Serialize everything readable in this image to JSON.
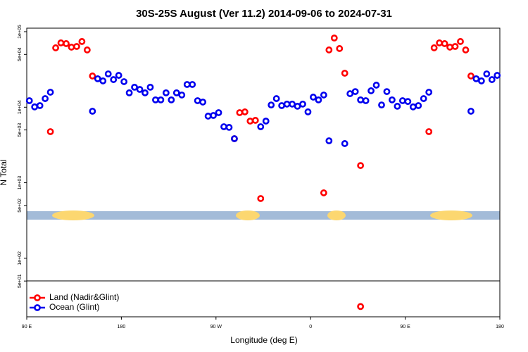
{
  "chart_data": {
    "type": "scatter",
    "title": "30S-25S August (Ver 11.2)   2014-09-06 to 2024-07-31",
    "xlabel": "Longitude (deg E)",
    "ylabel": "N Total",
    "xlim": [
      90,
      540
    ],
    "xticks": [
      {
        "value": 90,
        "label": "90 E"
      },
      {
        "value": 180,
        "label": "180"
      },
      {
        "value": 270,
        "label": "90 W"
      },
      {
        "value": 360,
        "label": "0"
      },
      {
        "value": 450,
        "label": "90 E"
      },
      {
        "value": 540,
        "label": "180"
      }
    ],
    "ylim": [
      16.8,
      111300
    ],
    "log_y": true,
    "yticks": [
      {
        "value": 100000,
        "label": "1e+05"
      },
      {
        "value": 50000,
        "label": "5e+04"
      },
      {
        "value": 10000,
        "label": "1e+04"
      },
      {
        "value": 5000,
        "label": "5e+03"
      },
      {
        "value": 1000,
        "label": "1e+03"
      },
      {
        "value": 500,
        "label": "5e+02"
      },
      {
        "value": 100,
        "label": "1e+02"
      },
      {
        "value": 50,
        "label": "5e+01"
      }
    ],
    "legend": "lower left",
    "series": [
      {
        "name": "Land (Nadir&Glint)",
        "color": "#ff0000",
        "x": [
          112.5,
          117.5,
          122.5,
          127.5,
          132.5,
          137.5,
          142.5,
          147.5,
          152.5,
          287.5,
          292.5,
          297.5,
          302.5,
          307.5,
          312.5,
          372.5,
          377.5,
          382.5,
          387.5,
          392.5,
          407.5,
          407.5,
          472.5,
          477.5,
          482.5,
          487.5,
          492.5,
          497.5,
          502.5,
          507.5,
          512.5
        ],
        "values": [
          4750,
          61100,
          71000,
          69500,
          62400,
          63700,
          74100,
          57300,
          25900,
          3830,
          8470,
          8670,
          6550,
          6700,
          618,
          735,
          57300,
          82400,
          59800,
          28200,
          1690,
          23,
          4750,
          61100,
          71000,
          69500,
          62400,
          63700,
          74100,
          57300,
          25900
        ]
      },
      {
        "name": "Ocean (Glint)",
        "color": "#0000ee",
        "x": [
          92.5,
          97.5,
          102.5,
          107.5,
          112.5,
          152.5,
          157.5,
          162.5,
          167.5,
          172.5,
          177.5,
          182.5,
          187.5,
          192.5,
          197.5,
          202.5,
          207.5,
          212.5,
          217.5,
          222.5,
          227.5,
          232.5,
          237.5,
          242.5,
          247.5,
          252.5,
          257.5,
          262.5,
          267.5,
          272.5,
          277.5,
          282.5,
          287.5,
          312.5,
          317.5,
          322.5,
          327.5,
          332.5,
          337.5,
          342.5,
          347.5,
          352.5,
          357.5,
          362.5,
          367.5,
          372.5,
          377.5,
          392.5,
          397.5,
          402.5,
          407.5,
          412.5,
          417.5,
          422.5,
          427.5,
          432.5,
          437.5,
          442.5,
          447.5,
          452.5,
          457.5,
          462.5,
          467.5,
          472.5,
          512.5,
          517.5,
          522.5,
          527.5,
          532.5,
          537.5
        ],
        "values": [
          12200,
          10100,
          10500,
          13000,
          15800,
          8850,
          23800,
          22300,
          27600,
          23200,
          26400,
          21800,
          15500,
          18400,
          17200,
          15500,
          18400,
          12500,
          12500,
          15500,
          12500,
          15500,
          14500,
          20000,
          20000,
          12200,
          11700,
          7620,
          7780,
          8470,
          5520,
          5410,
          3830,
          5520,
          6550,
          10700,
          13000,
          10500,
          11000,
          11000,
          10300,
          11000,
          8670,
          13600,
          12500,
          14500,
          3590,
          3300,
          15100,
          16100,
          12500,
          12200,
          16500,
          19600,
          10700,
          16100,
          12500,
          10300,
          12200,
          11900,
          10100,
          10500,
          13000,
          15800,
          8850,
          23800,
          22300,
          27600,
          23200,
          26400
        ]
      }
    ]
  }
}
